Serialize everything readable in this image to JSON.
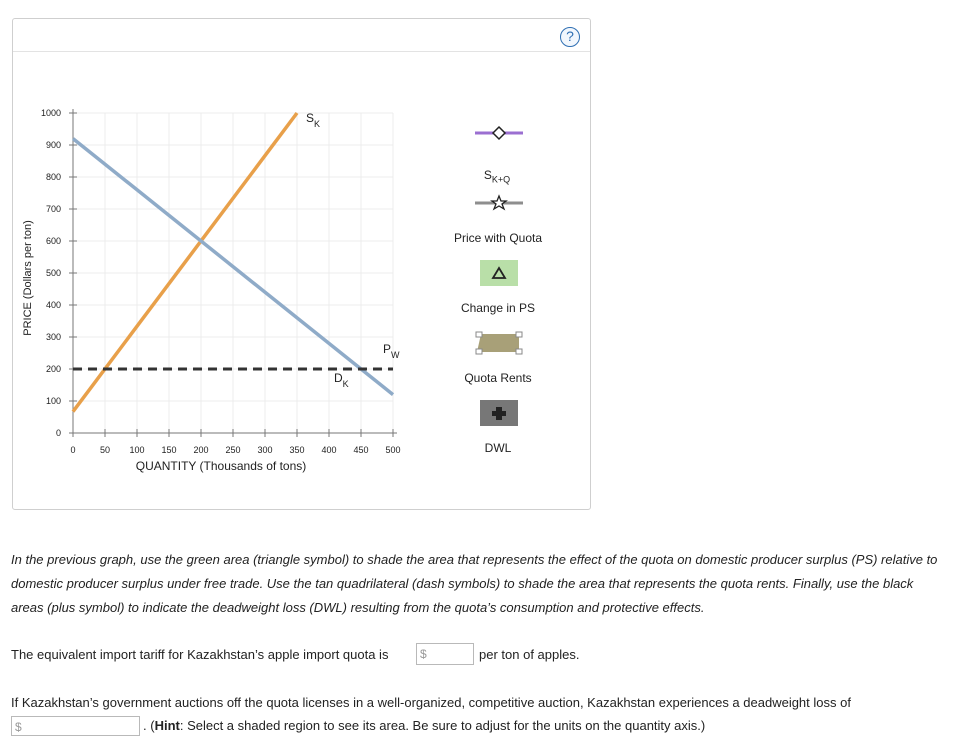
{
  "help": {
    "symbol": "?"
  },
  "chart_data": {
    "type": "line",
    "xlabel": "QUANTITY (Thousands of tons)",
    "ylabel": "PRICE (Dollars per ton)",
    "xlim": [
      0,
      500
    ],
    "ylim": [
      0,
      1000
    ],
    "x_ticks": [
      "0",
      "50",
      "100",
      "150",
      "200",
      "250",
      "300",
      "350",
      "400",
      "450",
      "500"
    ],
    "y_ticks": [
      "0",
      "100",
      "200",
      "300",
      "400",
      "500",
      "600",
      "700",
      "800",
      "900",
      "1000"
    ],
    "grid": true,
    "series": [
      {
        "name": "SK",
        "label_main": "S",
        "label_sub": "K",
        "color": "#e8a04a",
        "points": [
          [
            0,
            67
          ],
          [
            350,
            1000
          ]
        ]
      },
      {
        "name": "DK",
        "label_main": "D",
        "label_sub": "K",
        "color": "#8fabc8",
        "points": [
          [
            0,
            920
          ],
          [
            500,
            120
          ]
        ]
      },
      {
        "name": "PW",
        "label_main": "P",
        "label_sub": "W",
        "color": "#333333",
        "dashed": true,
        "points": [
          [
            0,
            200
          ],
          [
            500,
            200
          ]
        ]
      }
    ]
  },
  "legend": {
    "sk_q": {
      "main": "S",
      "sub": "K+Q",
      "color": "#9b6fd1"
    },
    "price_with_quota": {
      "label": "Price with Quota",
      "color": "#8e8e8e"
    },
    "change_in_ps": {
      "label": "Change in PS",
      "color": "#b9dfa8"
    },
    "quota_rents": {
      "label": "Quota Rents",
      "color": "#a8a078"
    },
    "dwl": {
      "label": "DWL",
      "color": "#777777"
    }
  },
  "instructions": {
    "text": "In the previous graph, use the green area (triangle symbol) to shade the area that represents the effect of the quota on domestic producer surplus (PS) relative to domestic producer surplus under free trade. Use the tan quadrilateral (dash symbols) to shade the area that represents the quota rents. Finally, use the black areas (plus symbol) to indicate the deadweight loss (DWL) resulting from the quota’s consumption and protective effects."
  },
  "tariff": {
    "before": "The equivalent import tariff for Kazakhstan’s apple import quota is",
    "currency": "$",
    "value": "",
    "after": "per ton of apples."
  },
  "auction": {
    "line1": "If Kazakhstan’s government auctions off the quota licenses in a well-organized, competitive auction, Kazakhstan experiences a deadweight loss of",
    "currency": "$",
    "value": "",
    "hint_bold": "Hint",
    "hint_rest": ": Select a shaded region to see its area. Be sure to adjust for the units on the quantity axis.)",
    "hint_open": ". (",
    "hint_colon": ""
  }
}
